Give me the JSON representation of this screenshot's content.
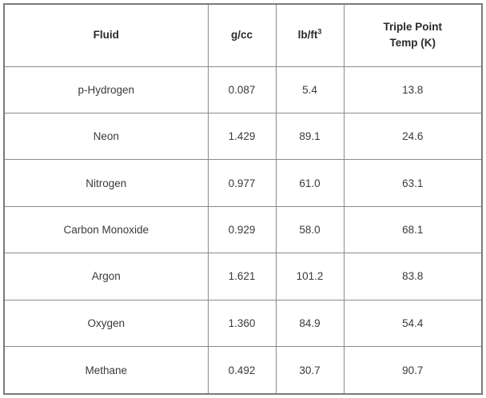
{
  "table": {
    "headers": {
      "fluid": "Fluid",
      "gcc": "g/cc",
      "lbft_base": "lb/ft",
      "lbft_exp": "3",
      "triple_line1": "Triple Point",
      "triple_line2": "Temp (K)"
    },
    "rows": [
      [
        "p-Hydrogen",
        "0.087",
        "5.4",
        "13.8"
      ],
      [
        "Neon",
        "1.429",
        "89.1",
        "24.6"
      ],
      [
        "Nitrogen",
        "0.977",
        "61.0",
        "63.1"
      ],
      [
        "Carbon Monoxide",
        "0.929",
        "58.0",
        "68.1"
      ],
      [
        "Argon",
        "1.621",
        "101.2",
        "83.8"
      ],
      [
        "Oxygen",
        "1.360",
        "84.9",
        "54.4"
      ],
      [
        "Methane",
        "0.492",
        "30.7",
        "90.7"
      ]
    ]
  }
}
